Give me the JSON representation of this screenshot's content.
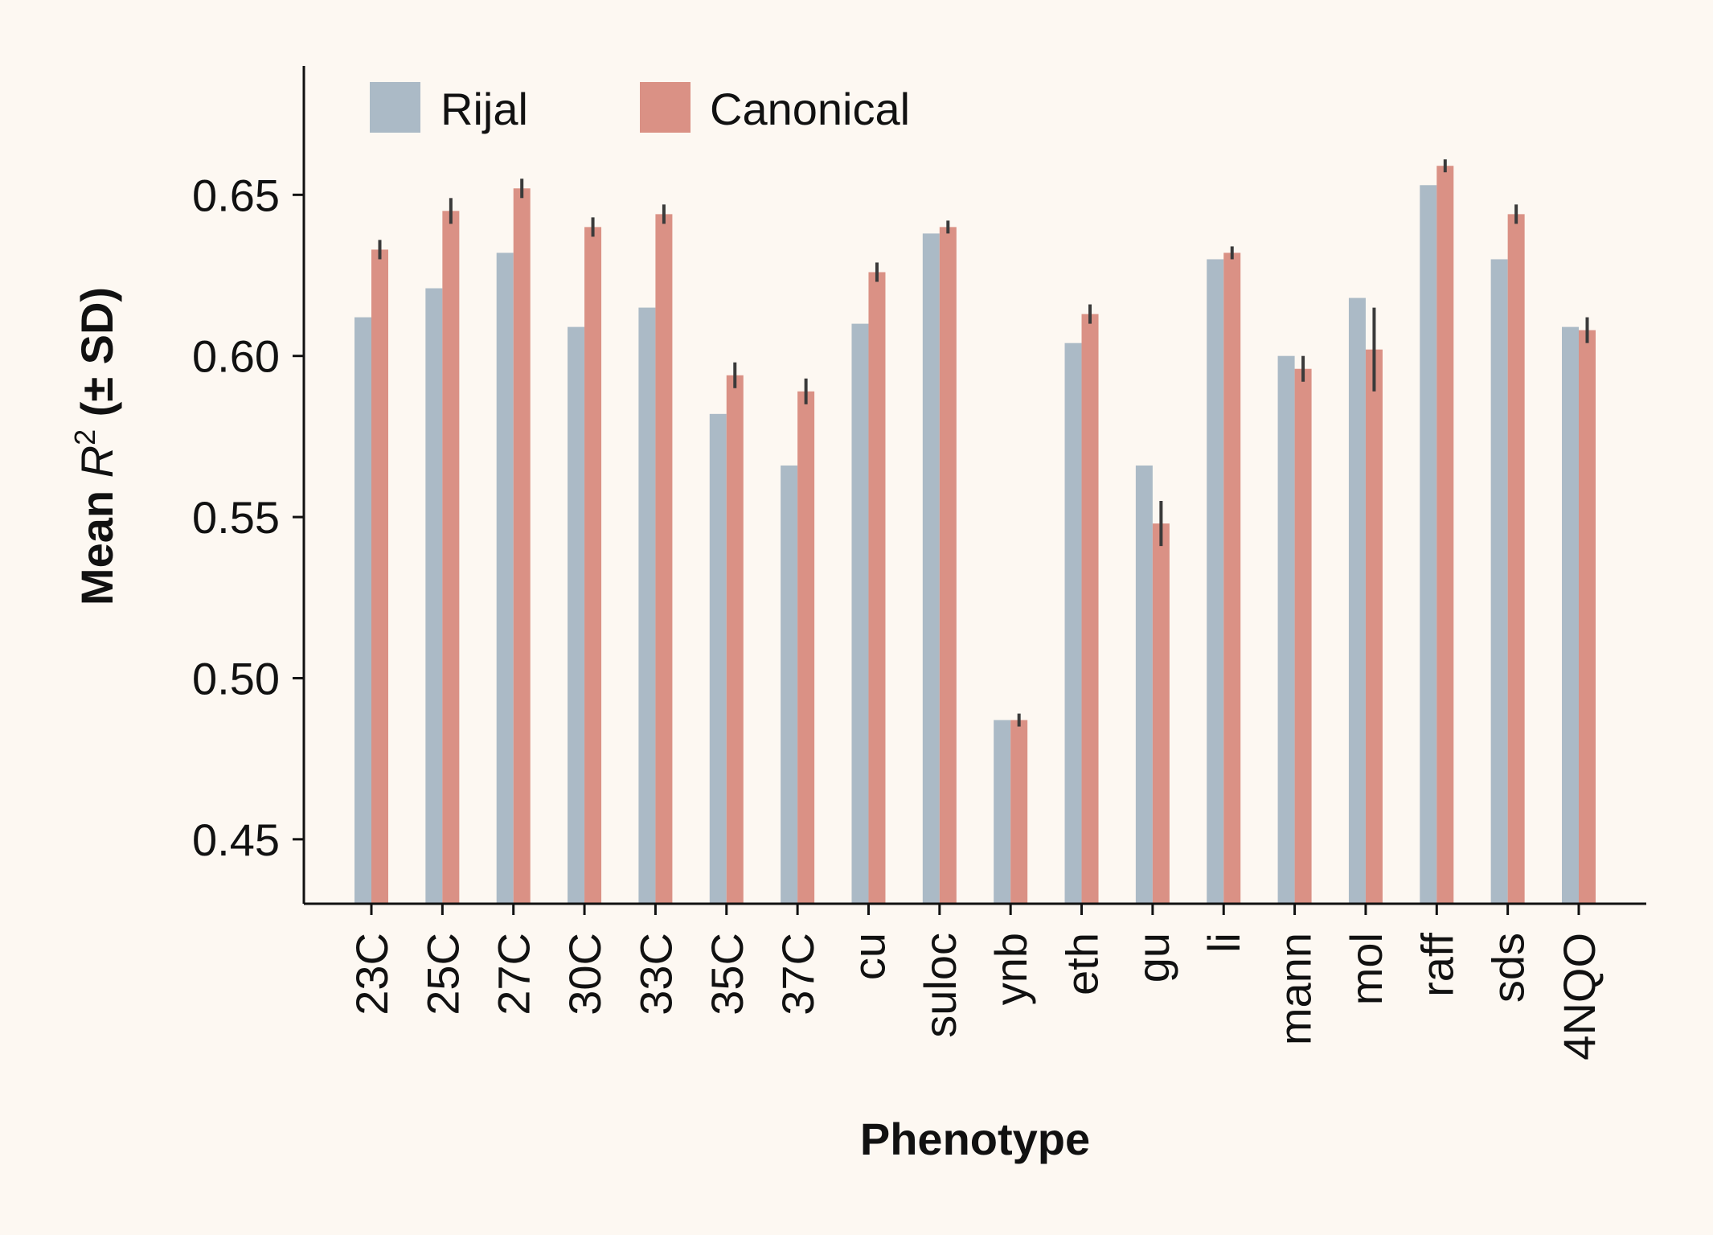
{
  "chart_data": {
    "type": "bar",
    "xlabel": "Phenotype",
    "ylabel": {
      "prefix": "Mean ",
      "symbol": "R",
      "superscript": "2",
      "suffix": " (± SD)"
    },
    "ylim": [
      0.43,
      0.69
    ],
    "yticks": [
      0.45,
      0.5,
      0.55,
      0.6,
      0.65
    ],
    "ytick_labels": [
      "0.45",
      "0.50",
      "0.55",
      "0.60",
      "0.65"
    ],
    "legend_position": "top-left",
    "grid": false,
    "categories": [
      "23C",
      "25C",
      "27C",
      "30C",
      "33C",
      "35C",
      "37C",
      "cu",
      "suloc",
      "ynb",
      "eth",
      "gu",
      "li",
      "mann",
      "mol",
      "raff",
      "sds",
      "4NQO"
    ],
    "series": [
      {
        "name": "Rijal",
        "color": "#abbac6",
        "values": [
          0.612,
          0.621,
          0.632,
          0.609,
          0.615,
          0.582,
          0.566,
          0.61,
          0.638,
          0.487,
          0.604,
          0.566,
          0.63,
          0.6,
          0.618,
          0.653,
          0.63,
          0.609
        ]
      },
      {
        "name": "Canonical",
        "color": "#da9185",
        "values": [
          0.633,
          0.645,
          0.652,
          0.64,
          0.644,
          0.594,
          0.589,
          0.626,
          0.64,
          0.487,
          0.613,
          0.548,
          0.632,
          0.596,
          0.602,
          0.659,
          0.644,
          0.608
        ],
        "sd": [
          0.003,
          0.004,
          0.003,
          0.003,
          0.003,
          0.004,
          0.004,
          0.003,
          0.002,
          0.002,
          0.003,
          0.007,
          0.002,
          0.004,
          0.013,
          0.002,
          0.003,
          0.004
        ]
      }
    ]
  }
}
